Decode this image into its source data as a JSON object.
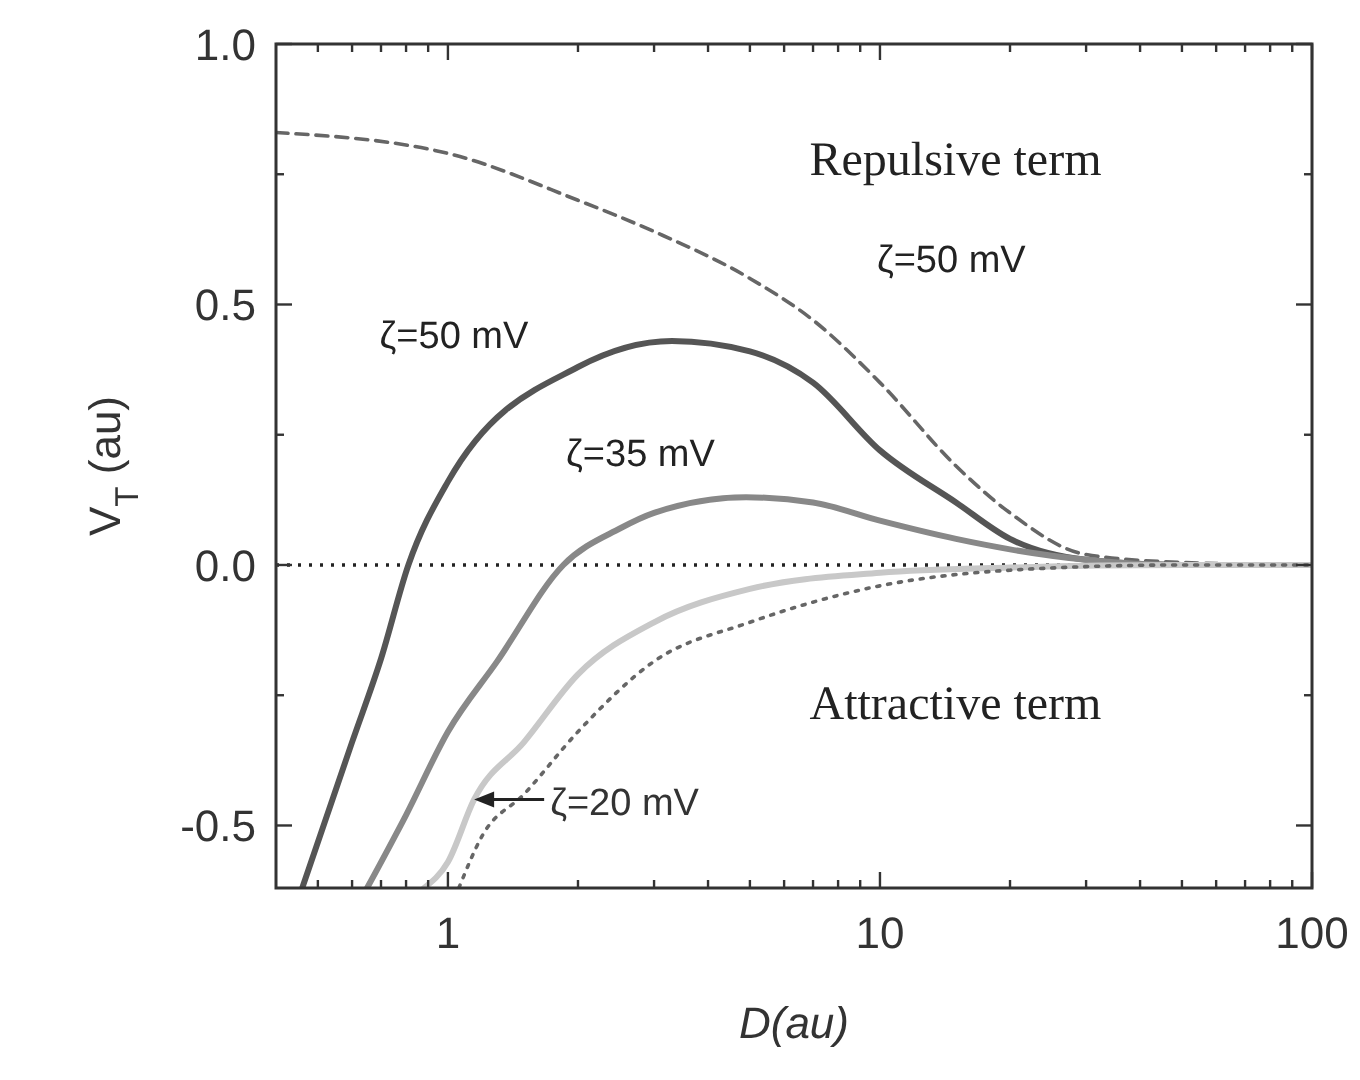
{
  "chart_data": {
    "type": "line",
    "xlabel": "D(au)",
    "ylabel": "V$_{T}$ (au)",
    "log": "x",
    "xlim": [
      0.4,
      100
    ],
    "ylim": [
      -0.62,
      1.0
    ],
    "xticks": [
      {
        "value": 0.5,
        "label": null
      },
      {
        "value": 0.6,
        "label": null
      },
      {
        "value": 0.7,
        "label": null
      },
      {
        "value": 0.8,
        "label": null
      },
      {
        "value": 0.9,
        "label": null
      },
      1,
      {
        "value": 2,
        "label": null
      },
      {
        "value": 3,
        "label": null
      },
      {
        "value": 4,
        "label": null
      },
      {
        "value": 5,
        "label": null
      },
      {
        "value": 6,
        "label": null
      },
      {
        "value": 7,
        "label": null
      },
      {
        "value": 8,
        "label": null
      },
      {
        "value": 9,
        "label": null
      },
      10,
      {
        "value": 20,
        "label": null
      },
      {
        "value": 30,
        "label": null
      },
      {
        "value": 40,
        "label": null
      },
      {
        "value": 50,
        "label": null
      },
      {
        "value": 60,
        "label": null
      },
      {
        "value": 70,
        "label": null
      },
      {
        "value": 80,
        "label": null
      },
      {
        "value": 90,
        "label": null
      },
      100
    ],
    "yticks": [
      {
        "value": -0.5,
        "label": "-0.5"
      },
      {
        "value": -0.25,
        "label": null
      },
      {
        "value": 0,
        "label": "0.0"
      },
      {
        "value": 0.25,
        "label": null
      },
      {
        "value": 0.5,
        "label": "0.5"
      },
      {
        "value": 0.75,
        "label": null
      },
      {
        "value": 1,
        "label": "1.0"
      }
    ],
    "grid": false,
    "ref_lines": [
      {
        "axis": "y",
        "value": 0,
        "color": "#222222",
        "line_style": "dotted"
      }
    ],
    "series": [
      {
        "color": "#666666",
        "line_style": "dashed",
        "x": [
          0.4,
          1,
          2,
          3,
          5,
          7,
          10,
          15,
          20,
          30,
          50,
          100
        ],
        "values": [
          0.83,
          0.79,
          0.7,
          0.64,
          0.55,
          0.47,
          0.35,
          0.19,
          0.1,
          0.02,
          0.005,
          0
        ]
      },
      {
        "color": "#555555",
        "line_style": "solid",
        "x": [
          0.46,
          0.6,
          0.7,
          0.81,
          1,
          2,
          3.3,
          5,
          7,
          10,
          15,
          20,
          30,
          50,
          100
        ],
        "values": [
          -0.62,
          -0.34,
          -0.18,
          0,
          0.16,
          0.38,
          0.43,
          0.41,
          0.35,
          0.22,
          0.12,
          0.05,
          0.01,
          0,
          0
        ]
      },
      {
        "color": "#888888",
        "line_style": "solid",
        "x": [
          0.65,
          0.8,
          1,
          1.3,
          1.85,
          2.5,
          3,
          4.9,
          7,
          10,
          15,
          20,
          30,
          50,
          100
        ],
        "values": [
          -0.62,
          -0.48,
          -0.32,
          -0.185,
          0,
          0.07,
          0.1,
          0.13,
          0.12,
          0.085,
          0.05,
          0.03,
          0.01,
          0,
          0
        ]
      },
      {
        "color": "#c8c8c8",
        "line_style": "solid",
        "x": [
          0.88,
          1,
          1.15,
          1.5,
          2,
          3,
          5,
          10,
          20,
          50,
          100
        ],
        "values": [
          -0.62,
          -0.57,
          -0.45,
          -0.34,
          -0.21,
          -0.11,
          -0.046,
          -0.015,
          -0.005,
          0,
          0
        ]
      },
      {
        "color": "#666666",
        "line_style": "dotted",
        "x": [
          1.06,
          1.2,
          1.5,
          2,
          3,
          5,
          10,
          20,
          50,
          100
        ],
        "values": [
          -0.62,
          -0.52,
          -0.44,
          -0.32,
          -0.185,
          -0.11,
          -0.04,
          -0.01,
          0,
          0
        ]
      }
    ],
    "annotations": [
      "Repulsive term",
      "ζ=50 mV",
      "ζ=50 mV",
      "ζ=35 mV",
      "Attractive term",
      {
        "text": "ζ=20 mV",
        "x": 1.15,
        "y": -0.45
      }
    ]
  }
}
